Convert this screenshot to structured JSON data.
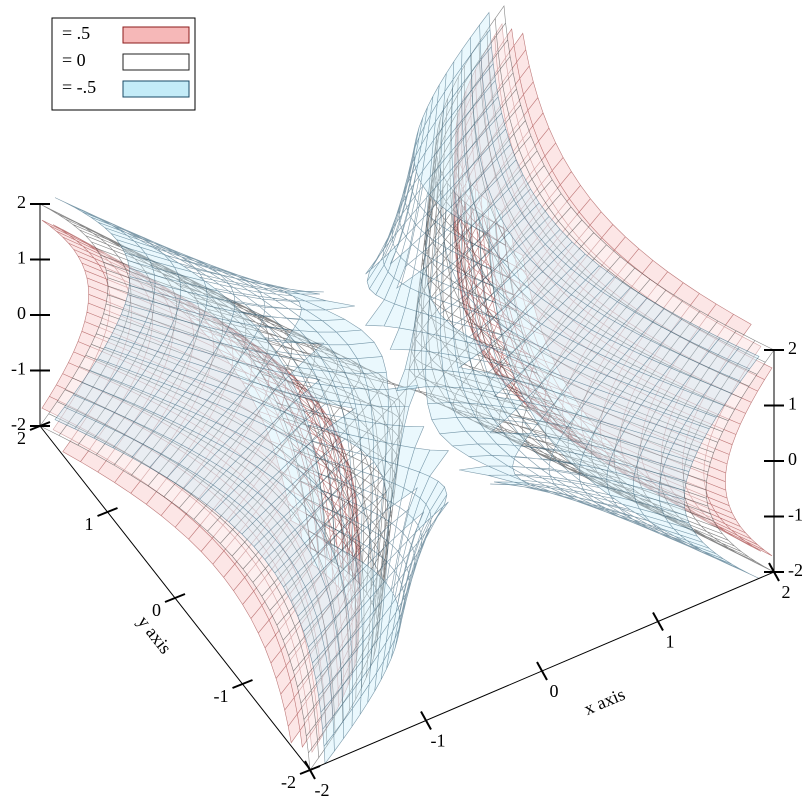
{
  "chart_data": {
    "type": "isosurface3d",
    "x_label": "x axis",
    "y_label": "y axis",
    "xlim": [
      -2,
      2
    ],
    "ylim": [
      -2,
      2
    ],
    "zlim": [
      -2,
      2
    ],
    "xticks": [
      -2,
      -1,
      0,
      1,
      2
    ],
    "yticks": [
      -2,
      -1,
      0,
      1,
      2
    ],
    "zticks": [
      -2,
      -1,
      0,
      1,
      2
    ],
    "legend": "top-left",
    "series": [
      {
        "name": "= .5",
        "level": 0.5,
        "color": "#f6b8b8",
        "line_color": "#8b1a1a"
      },
      {
        "name": "= 0",
        "level": 0,
        "color": "#ffffff",
        "line_color": "#222222"
      },
      {
        "name": "= -.5",
        "level": -0.5,
        "color": "#c4ecf8",
        "line_color": "#1a4a66"
      }
    ]
  }
}
